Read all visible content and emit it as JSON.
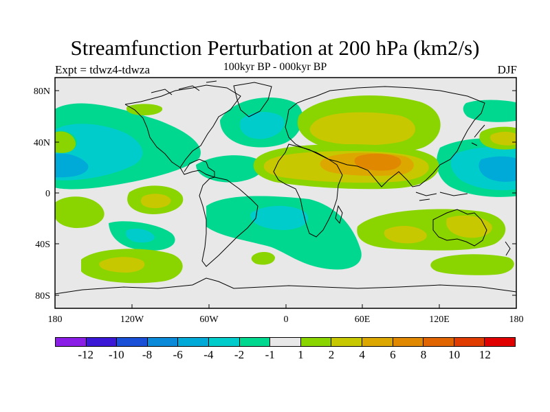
{
  "title": "Streamfunction Perturbation at 200 hPa (km2/s)",
  "left_label": "Expt = tdwz4-tdwza",
  "center_label": "100kyr BP - 000kyr BP",
  "right_label": "DJF",
  "lon_ticks": [
    "180",
    "120W",
    "60W",
    "0",
    "60E",
    "120E",
    "180"
  ],
  "lat_ticks": [
    "80N",
    "40N",
    "0",
    "40S",
    "80S"
  ],
  "colorbar": {
    "colors": [
      "#8a1ee6",
      "#3a18d6",
      "#1a4fd8",
      "#0a8ad8",
      "#00aad8",
      "#00cccc",
      "#00d890",
      "#e8e8e8",
      "#8ad400",
      "#c8c800",
      "#dca800",
      "#e08800",
      "#e06400",
      "#e03c00",
      "#e00000"
    ],
    "labels": [
      "-12",
      "-10",
      "-8",
      "-6",
      "-4",
      "-2",
      "-1",
      "1",
      "2",
      "4",
      "6",
      "8",
      "10",
      "12"
    ]
  },
  "colors": {
    "ocean": "#e8e8e8",
    "coast": "#000000"
  }
}
